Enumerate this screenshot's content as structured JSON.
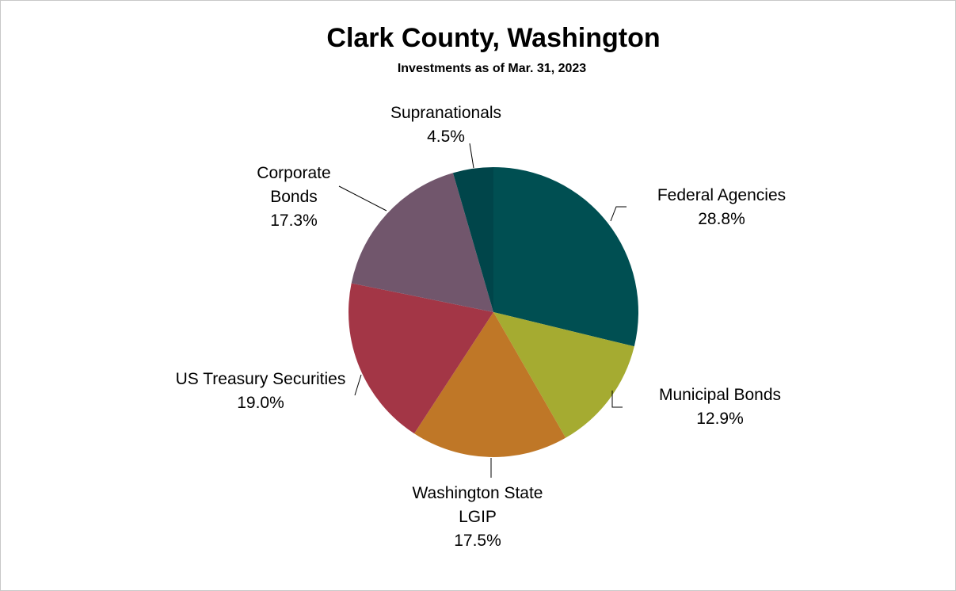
{
  "chart_data": {
    "type": "pie",
    "title": "Clark County, Washington",
    "subtitle": "Investments as of Mar. 31, 2023",
    "slices": [
      {
        "name": "Federal Agencies",
        "label_lines": [
          "Federal Agencies"
        ],
        "value": 28.8,
        "value_label": "28.8%",
        "color": "#004f52"
      },
      {
        "name": "Municipal Bonds",
        "label_lines": [
          "Municipal Bonds"
        ],
        "value": 12.9,
        "value_label": "12.9%",
        "color": "#a5ab31"
      },
      {
        "name": "Washington State LGIP",
        "label_lines": [
          "Washington State",
          "LGIP"
        ],
        "value": 17.5,
        "value_label": "17.5%",
        "color": "#bf7727"
      },
      {
        "name": "US Treasury Securities",
        "label_lines": [
          "US Treasury Securities"
        ],
        "value": 19.0,
        "value_label": "19.0%",
        "color": "#a33646"
      },
      {
        "name": "Corporate Bonds",
        "label_lines": [
          "Corporate",
          "Bonds"
        ],
        "value": 17.3,
        "value_label": "17.3%",
        "color": "#71566c"
      },
      {
        "name": "Supranationals",
        "label_lines": [
          "Supranationals"
        ],
        "value": 4.5,
        "value_label": "4.5%",
        "color": "#00454a"
      }
    ],
    "legend": "none"
  }
}
